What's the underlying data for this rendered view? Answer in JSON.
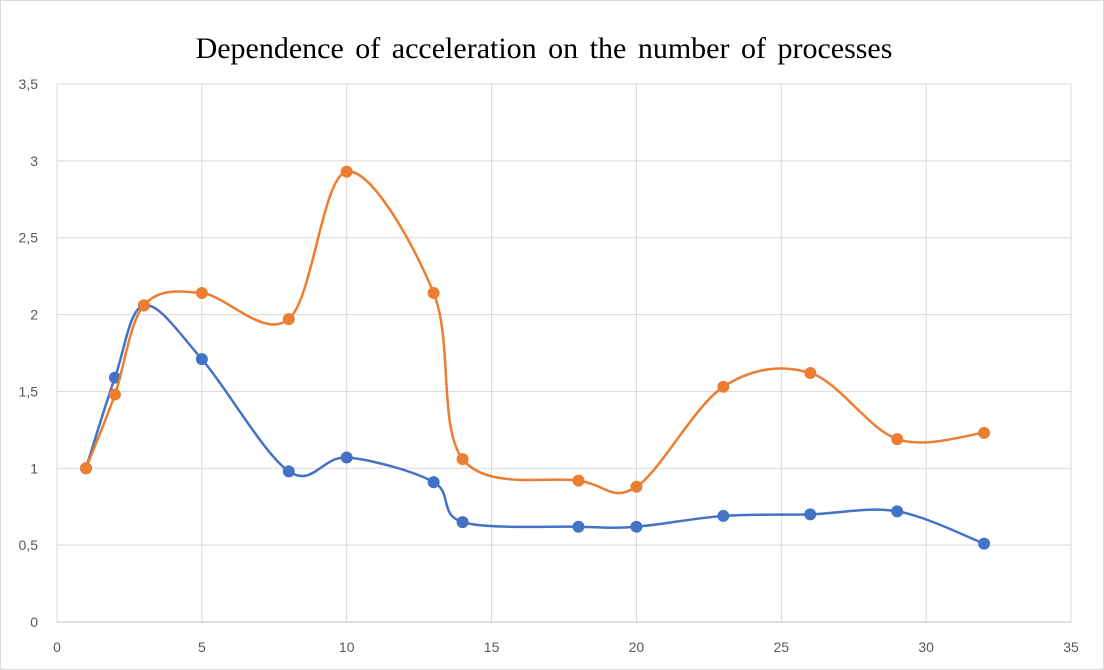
{
  "chart_data": {
    "type": "line",
    "title": "Dependence of acceleration on the number of processes",
    "xlabel": "",
    "ylabel": "",
    "xlim": [
      0,
      35
    ],
    "ylim": [
      0,
      3.5
    ],
    "x_ticks": [
      "0",
      "5",
      "10",
      "15",
      "20",
      "25",
      "30",
      "35"
    ],
    "y_ticks": [
      "0",
      "0,5",
      "1",
      "1,5",
      "2",
      "2,5",
      "3",
      "3,5"
    ],
    "grid": true,
    "smooth": true,
    "series": [
      {
        "color": "#4472C4",
        "x": [
          1,
          2,
          3,
          5,
          8,
          10,
          13,
          14,
          18,
          20,
          23,
          26,
          29,
          32
        ],
        "y": [
          1.0,
          1.59,
          2.06,
          1.71,
          0.98,
          1.07,
          0.91,
          0.65,
          0.62,
          0.62,
          0.69,
          0.7,
          0.72,
          0.51
        ]
      },
      {
        "color": "#ED7D31",
        "x": [
          1,
          2,
          3,
          5,
          8,
          10,
          13,
          14,
          18,
          20,
          23,
          26,
          29,
          32
        ],
        "y": [
          1.0,
          1.48,
          2.06,
          2.14,
          1.97,
          2.93,
          2.14,
          1.06,
          0.92,
          0.88,
          1.53,
          1.62,
          1.19,
          1.23
        ]
      }
    ]
  }
}
